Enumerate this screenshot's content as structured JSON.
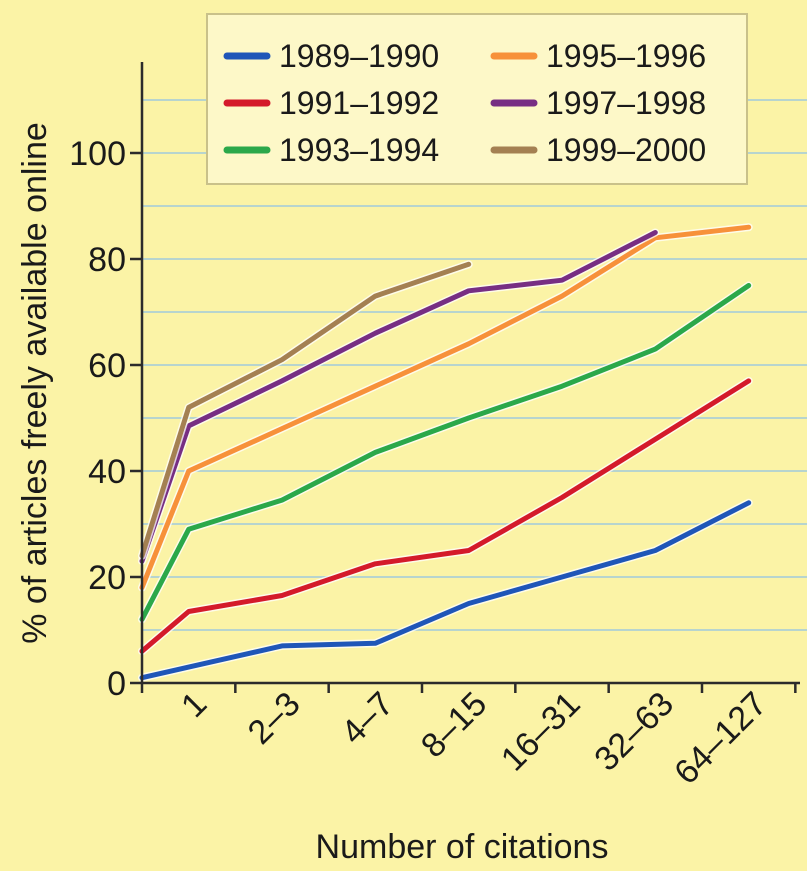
{
  "chart_data": {
    "type": "line",
    "title": "",
    "xlabel": "Number of citations",
    "ylabel": "% of articles freely available online",
    "ylim": [
      0,
      100
    ],
    "yticks": [
      0,
      20,
      40,
      60,
      80,
      100
    ],
    "grid": true,
    "legend_position": "top",
    "colors": {
      "background": "#fbf3a6",
      "grid": "#b7d4ce",
      "axis": "#2b2b2b",
      "legend_bg": "#fdf8c8",
      "legend_border": "#c9c18a"
    },
    "categories": [
      "1",
      "2–3",
      "4–7",
      "8–15",
      "16–31",
      "32–63",
      "64–127"
    ],
    "series": [
      {
        "name": "1989–1990",
        "color": "#1f56b8",
        "points": [
          [
            0,
            1
          ],
          [
            0.5,
            3
          ],
          [
            1.5,
            7
          ],
          [
            2.5,
            7.5
          ],
          [
            3.5,
            15
          ],
          [
            4.5,
            20
          ],
          [
            5.5,
            25
          ],
          [
            6.5,
            34
          ]
        ]
      },
      {
        "name": "1991–1992",
        "color": "#d41a2a",
        "points": [
          [
            0,
            6
          ],
          [
            0.5,
            13.5
          ],
          [
            1.5,
            16.5
          ],
          [
            2.5,
            22.5
          ],
          [
            3.5,
            25
          ],
          [
            4.5,
            35
          ],
          [
            5.5,
            46
          ],
          [
            6.5,
            57
          ]
        ]
      },
      {
        "name": "1993–1994",
        "color": "#2ba84a",
        "points": [
          [
            0,
            12
          ],
          [
            0.5,
            29
          ],
          [
            1.5,
            34.5
          ],
          [
            2.5,
            43.5
          ],
          [
            3.5,
            50
          ],
          [
            4.5,
            56
          ],
          [
            5.5,
            63
          ],
          [
            6.5,
            75
          ]
        ]
      },
      {
        "name": "1995–1996",
        "color": "#f7913a",
        "points": [
          [
            0,
            18
          ],
          [
            0.5,
            40
          ],
          [
            1.5,
            48
          ],
          [
            2.5,
            56
          ],
          [
            3.5,
            64
          ],
          [
            4.5,
            73
          ],
          [
            5.5,
            84
          ],
          [
            6.5,
            86
          ]
        ]
      },
      {
        "name": "1997–1998",
        "color": "#772e83",
        "points": [
          [
            0,
            23
          ],
          [
            0.5,
            48.5
          ],
          [
            1.5,
            57
          ],
          [
            2.5,
            66
          ],
          [
            3.5,
            74
          ],
          [
            4.5,
            76
          ],
          [
            5.5,
            85
          ]
        ]
      },
      {
        "name": "1999–2000",
        "color": "#a48052",
        "points": [
          [
            0,
            24
          ],
          [
            0.5,
            52
          ],
          [
            1.5,
            61
          ],
          [
            2.5,
            73
          ],
          [
            3.5,
            79
          ]
        ]
      }
    ]
  }
}
